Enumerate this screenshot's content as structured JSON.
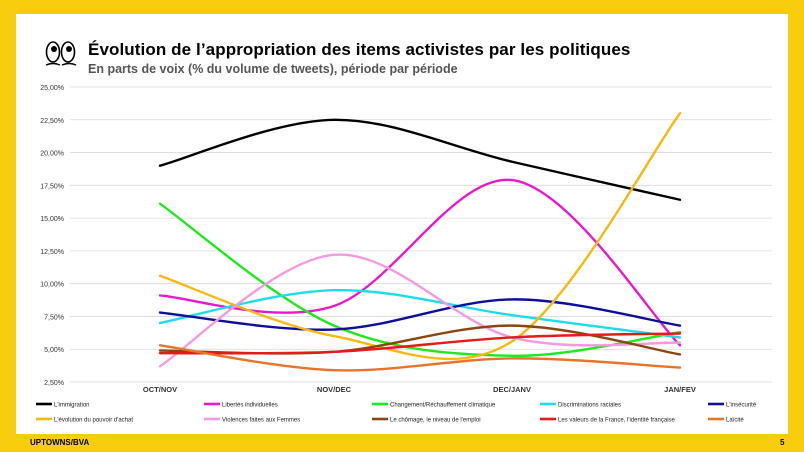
{
  "page": {
    "title": "Évolution de l’appropriation des items activistes par les politiques",
    "subtitle": "En parts de voix (% du volume de tweets), période par période",
    "footer_left": "UPTOWNS/BVA",
    "page_number": "5",
    "logo_icon": "eyes-icon"
  },
  "chart_data": {
    "type": "line",
    "title": "Évolution de l’appropriation des items activistes par les politiques",
    "subtitle": "En parts de voix (% du volume de tweets), période par période",
    "categories": [
      "OCT/NOV",
      "NOV/DEC",
      "DEC/JANV",
      "JAN/FEV"
    ],
    "ylim": [
      2.5,
      25
    ],
    "yticks": [
      "2,50%",
      "5,00%",
      "7,50%",
      "10,00%",
      "12,50%",
      "15,00%",
      "17,50%",
      "20,00%",
      "22,50%",
      "25,00%"
    ],
    "ytick_values": [
      2.5,
      5,
      7.5,
      10,
      12.5,
      15,
      17.5,
      20,
      22.5,
      25
    ],
    "grid": true,
    "legend_position": "bottom",
    "series": [
      {
        "name": "L'immigration",
        "color": "#000000",
        "values": [
          19.0,
          22.5,
          19.3,
          16.4
        ]
      },
      {
        "name": "Libertés individuelles",
        "color": "#E61ACC",
        "values": [
          9.1,
          8.3,
          17.9,
          5.3
        ]
      },
      {
        "name": "Changement/Réchauffement climatique",
        "color": "#1EE81E",
        "values": [
          16.1,
          6.8,
          4.5,
          6.3
        ]
      },
      {
        "name": "Discriminations raciales",
        "color": "#1DDCEA",
        "values": [
          7.0,
          9.5,
          7.6,
          5.9
        ]
      },
      {
        "name": "L'insécurité",
        "color": "#0E0E9A",
        "values": [
          7.8,
          6.5,
          8.8,
          6.8
        ]
      },
      {
        "name": "L'évolution du pouvoir d'achat",
        "color": "#F5B90F",
        "values": [
          10.6,
          6.0,
          5.6,
          23.0
        ]
      },
      {
        "name": "Violences faites aux Femmes",
        "color": "#F59AE0",
        "values": [
          3.7,
          12.2,
          5.9,
          5.5
        ]
      },
      {
        "name": "Le chômage, le niveau de l'emploi",
        "color": "#8B4513",
        "values": [
          4.9,
          4.8,
          6.8,
          4.6
        ]
      },
      {
        "name": "Les valeurs de la France, l'identité française",
        "color": "#E51A1A",
        "values": [
          4.7,
          4.8,
          5.9,
          6.2
        ]
      },
      {
        "name": "Laïcité",
        "color": "#E8742A",
        "values": [
          5.3,
          3.4,
          4.3,
          3.6
        ]
      }
    ]
  }
}
